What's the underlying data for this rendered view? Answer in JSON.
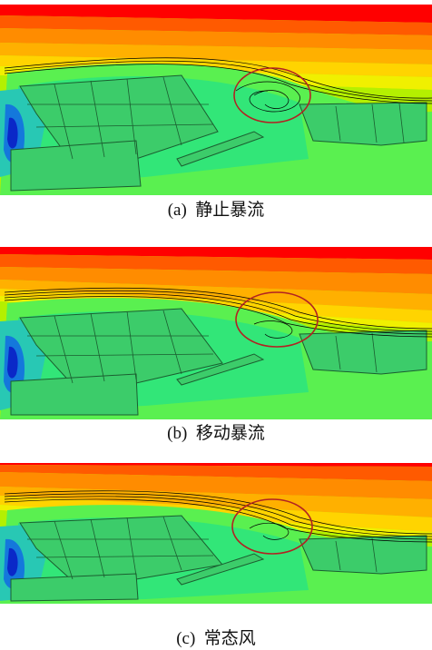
{
  "figure": {
    "panels": [
      {
        "caption": "(a)  静止暴流"
      },
      {
        "caption": "(b)  移动暴流"
      },
      {
        "caption": "(c)  常态风"
      }
    ],
    "colors": {
      "contour_scale": [
        "#ff0000",
        "#ff5a00",
        "#ff8c00",
        "#ffb000",
        "#ffd400",
        "#f0f000",
        "#b4f000",
        "#5af050",
        "#32e678",
        "#28c8b4",
        "#1478dc",
        "#0a28c8"
      ],
      "highlight_circle": "#b22222",
      "streamlines": "#000000"
    }
  }
}
